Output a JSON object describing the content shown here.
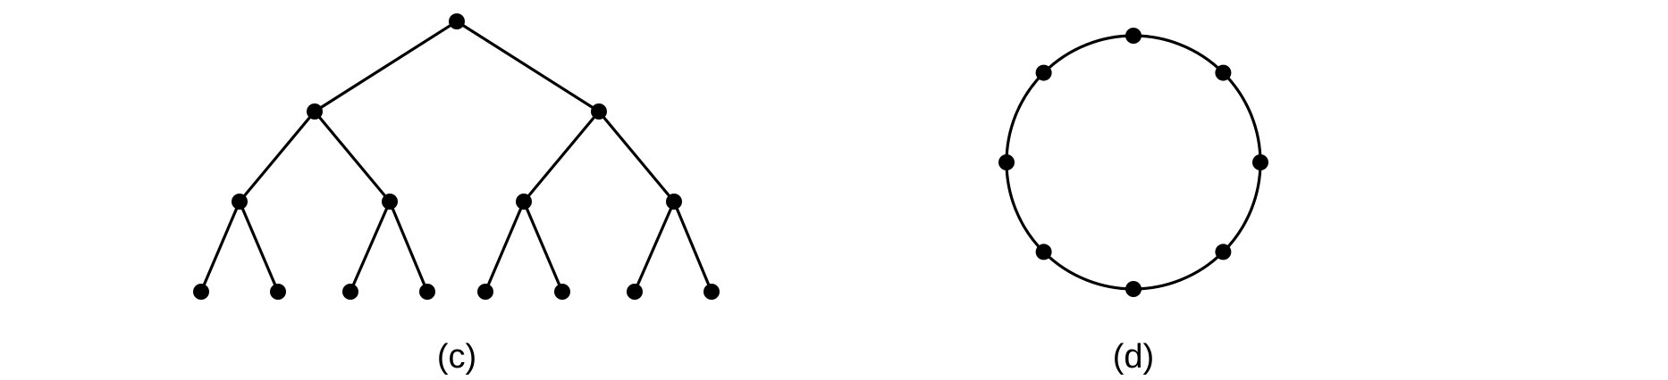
{
  "panels": [
    {
      "id": "c",
      "caption": "(c)",
      "graph": {
        "kind": "binary-tree",
        "depth": 3,
        "node_count": 15
      }
    },
    {
      "id": "d",
      "caption": "(d)",
      "graph": {
        "kind": "cycle",
        "node_count": 8
      }
    }
  ],
  "colors": {
    "line": "#000000",
    "node": "#000000",
    "background": "#ffffff"
  }
}
